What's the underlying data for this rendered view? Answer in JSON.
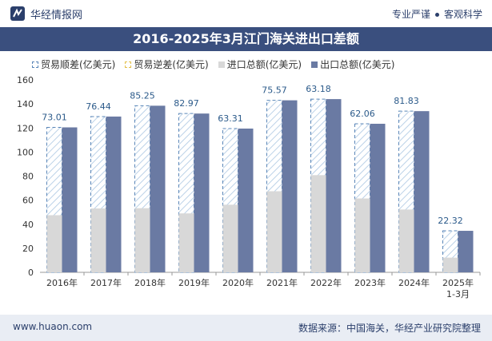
{
  "header": {
    "brand": "华经情报网",
    "slogan_left": "专业严谨",
    "slogan_right": "客观科学"
  },
  "legend": {
    "surplus": "贸易顺差(亿美元)",
    "deficit": "贸易逆差(亿美元)",
    "import_total": "进口总额(亿美元)",
    "export_total": "出口总额(亿美元)"
  },
  "footer": {
    "url": "www.huaon.com",
    "source": "数据来源：中国海关，华经产业研究院整理"
  },
  "colors": {
    "title_bg": "#3a4f7e",
    "export": "#6a7aa3",
    "import": "#d8d8d8",
    "surplus_border": "#5a86b8"
  },
  "chart_data": {
    "type": "bar",
    "title": "2016-2025年3月江门海关进出口差额",
    "categories": [
      "2016年",
      "2017年",
      "2018年",
      "2019年",
      "2020年",
      "2021年",
      "2022年",
      "2023年",
      "2024年",
      "2025年\n1-3月"
    ],
    "series": [
      {
        "name": "出口总额(亿美元)",
        "values": [
          120.5,
          129.5,
          138.5,
          132.0,
          119.5,
          143.0,
          144.0,
          123.5,
          134.0,
          34.5
        ]
      },
      {
        "name": "进口总额(亿美元)",
        "values": [
          47.5,
          53.1,
          53.3,
          49.0,
          56.2,
          67.4,
          80.8,
          61.4,
          52.2,
          12.2
        ]
      },
      {
        "name": "贸易顺差(亿美元)",
        "values": [
          73.01,
          76.44,
          85.25,
          82.97,
          63.31,
          75.57,
          63.18,
          62.06,
          81.83,
          22.32
        ]
      },
      {
        "name": "贸易逆差(亿美元)",
        "values": [
          0,
          0,
          0,
          0,
          0,
          0,
          0,
          0,
          0,
          0
        ]
      }
    ],
    "ylim": [
      0,
      160
    ],
    "yticks": [
      0,
      20,
      40,
      60,
      80,
      100,
      120,
      140,
      160
    ],
    "xlabel": "",
    "ylabel": ""
  }
}
